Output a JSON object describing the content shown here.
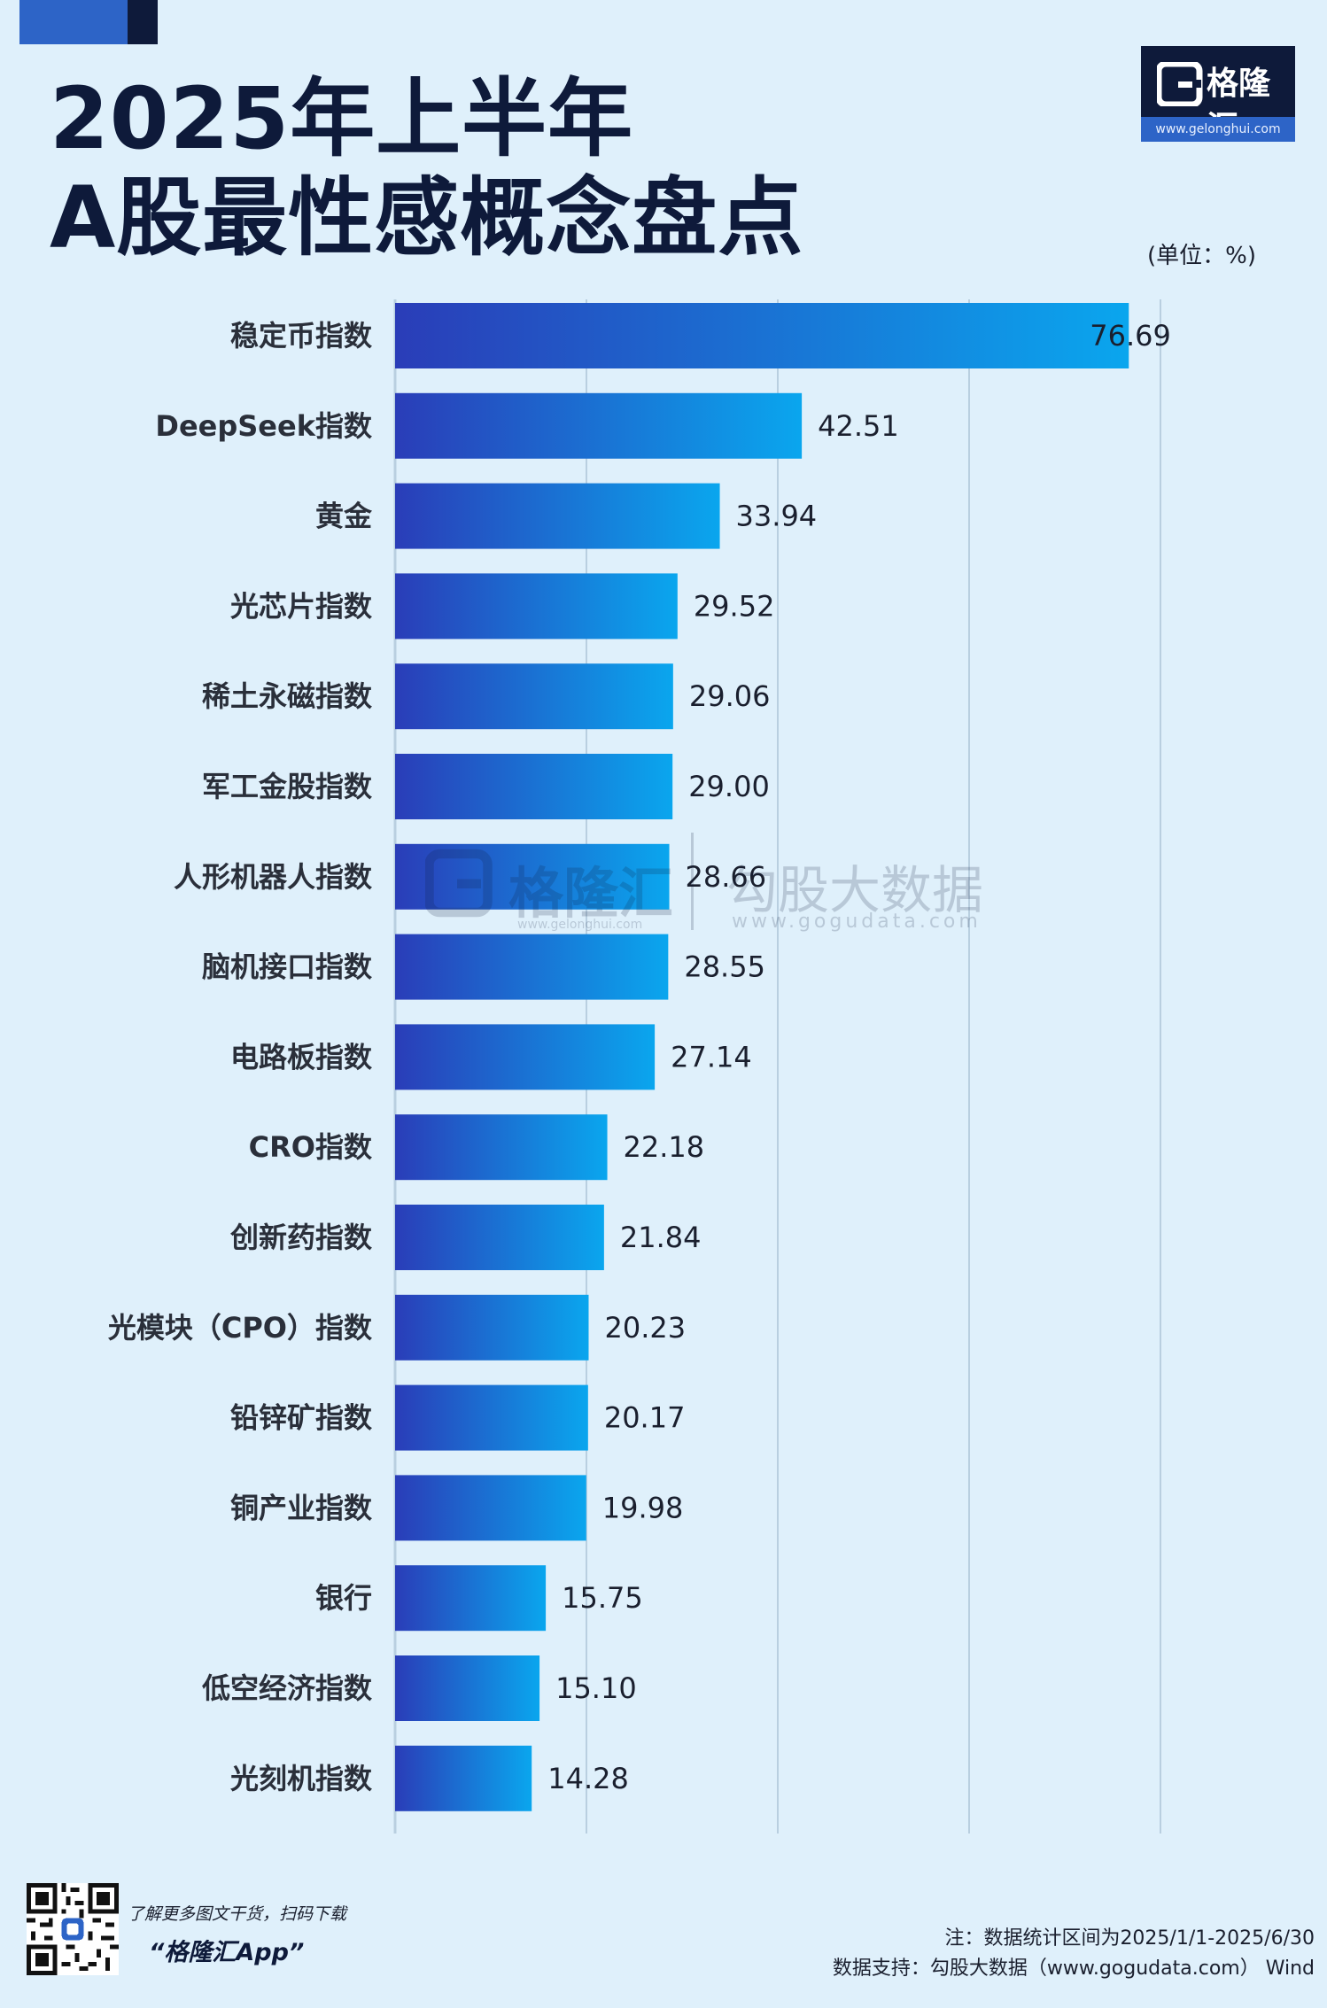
{
  "header": {
    "title_line1": "2025年上半年",
    "title_line2": "A股最性感概念盘点"
  },
  "logo": {
    "name": "格隆汇",
    "url": "www.gelonghui.com"
  },
  "unit_label": "(单位：%)",
  "chart_data": {
    "type": "bar",
    "orientation": "horizontal",
    "title": "2025年上半年 A股最性感概念盘点",
    "unit": "%",
    "categories": [
      "稳定币指数",
      "DeepSeek指数",
      "黄金",
      "光芯片指数",
      "稀土永磁指数",
      "军工金股指数",
      "人形机器人指数",
      "脑机接口指数",
      "电路板指数",
      "CRO指数",
      "创新药指数",
      "光模块（CPO）指数",
      "铅锌矿指数",
      "铜产业指数",
      "银行",
      "低空经济指数",
      "光刻机指数"
    ],
    "values": [
      76.69,
      42.51,
      33.94,
      29.52,
      29.06,
      29.0,
      28.66,
      28.55,
      27.14,
      22.18,
      21.84,
      20.23,
      20.17,
      19.98,
      15.75,
      15.1,
      14.28
    ],
    "value_labels": [
      "76.69",
      "42.51",
      "33.94",
      "29.52",
      "29.06",
      "29.00",
      "28.66",
      "28.55",
      "27.14",
      "22.18",
      "21.84",
      "20.23",
      "20.17",
      "19.98",
      "15.75",
      "15.10",
      "14.28"
    ],
    "xlim": [
      0,
      80
    ],
    "gridlines": [
      0,
      20,
      40,
      60,
      80
    ],
    "grid": true,
    "bar_color_start": "#2a3db8",
    "bar_color_end": "#0aa6ee",
    "gridline_color": "#b9cfe0"
  },
  "watermark": {
    "name": "格隆汇",
    "url": "www.gelonghui.com",
    "name2": "勾股大数据",
    "url2": "www.gogudata.com"
  },
  "footer": {
    "promo_text": "了解更多图文干货，扫码下载",
    "promo_app": "“格隆汇App”",
    "note_line1": "注：数据统计区间为2025/1/1-2025/6/30",
    "note_line2": "数据支持：勾股大数据（www.gogudata.com） Wind"
  },
  "colors": {
    "background": "#dff0fb",
    "title": "#0e1a3a",
    "accent": "#2d64c7"
  }
}
